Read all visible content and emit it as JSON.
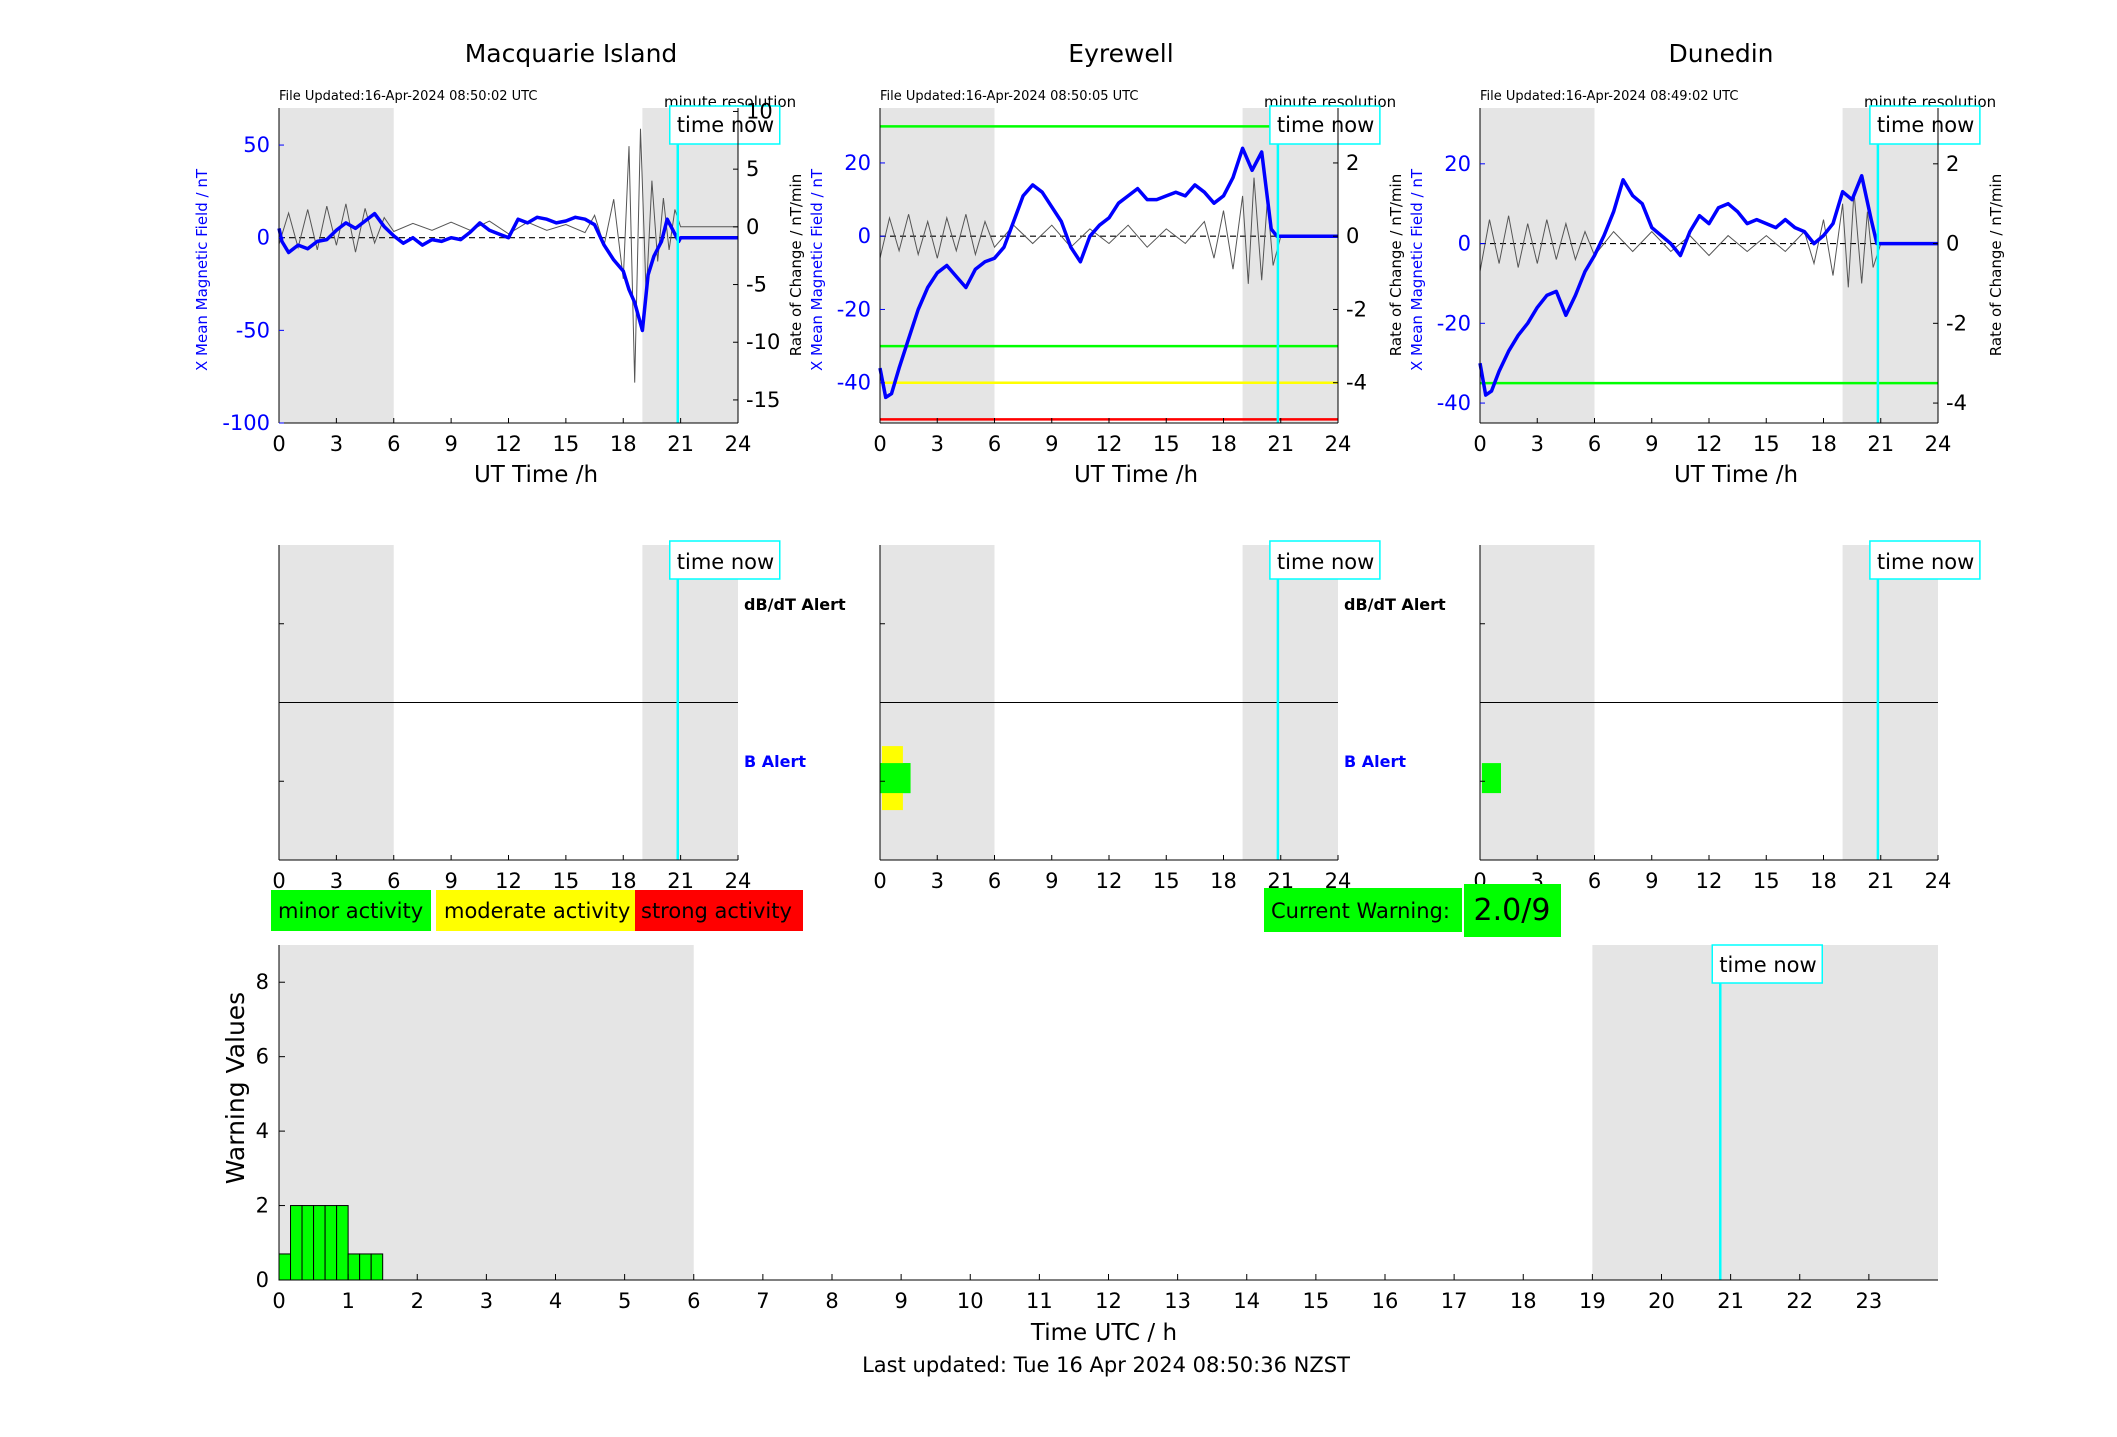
{
  "time_now_label": "time now",
  "minute_resolution_label": "minute resolution",
  "last_updated": "Last updated: Tue 16 Apr 2024 08:50:36 NZST",
  "colors": {
    "field": "#0000ff",
    "rate": "#555555",
    "shade": "#e5e5e5",
    "time_now": "#00ffff",
    "minor": "#00ff00",
    "moderate": "#ffff00",
    "strong": "#ff0000"
  },
  "legend": {
    "minor": "minor activity",
    "moderate": "moderate activity",
    "strong": "strong activity"
  },
  "current_warning": {
    "label": "Current Warning:",
    "value": "2.0/9"
  },
  "stations": [
    {
      "name": "Macquarie Island",
      "file_updated": "File Updated:16-Apr-2024 08:50:02 UTC",
      "y_left_label": "X Mean Magnetic Field / nT",
      "y_right_label": "Rate of Change / nT/min",
      "x_label": "UT Time /h",
      "alert_labels": [
        "dB/dT Alert",
        "B Alert"
      ]
    },
    {
      "name": "Eyrewell",
      "file_updated": "File Updated:16-Apr-2024 08:50:05 UTC",
      "y_left_label": "X Mean Magnetic Field / nT",
      "y_right_label": "Rate of Change / nT/min",
      "x_label": "UT Time /h",
      "alert_labels": [
        "dB/dT Alert",
        "B Alert"
      ]
    },
    {
      "name": "Dunedin",
      "file_updated": "File Updated:16-Apr-2024 08:49:02 UTC",
      "y_left_label": "X Mean Magnetic Field / nT",
      "y_right_label": "Rate of Change / nT/min",
      "x_label": "UT Time /h",
      "alert_labels": [
        "",
        ""
      ]
    }
  ],
  "chart_data": [
    {
      "type": "line",
      "title": "Macquarie Island",
      "xlabel": "UT Time /h",
      "ylabel": "X Mean Magnetic Field / nT",
      "ylabel_right": "Rate of Change / nT/min",
      "xlim": [
        0,
        24
      ],
      "ylim": [
        -100,
        70
      ],
      "ylim_right": [
        -17,
        10.3
      ],
      "x_ticks": [
        0,
        3,
        6,
        9,
        12,
        15,
        18,
        21,
        24
      ],
      "y_ticks": [
        -100,
        -50,
        0,
        50
      ],
      "y_ticks_right": [
        -15,
        -10,
        -5,
        0,
        5,
        10
      ],
      "shaded_hours": [
        [
          0,
          6
        ],
        [
          19,
          24
        ]
      ],
      "time_now": 20.85,
      "thresholds": [],
      "series": [
        {
          "x": [
            0,
            0.15,
            0.5,
            1,
            1.5,
            2,
            2.5,
            3,
            3.5,
            4,
            4.5,
            5,
            5.5,
            6,
            6.5,
            7,
            7.5,
            8,
            8.5,
            9,
            9.5,
            10,
            10.5,
            11,
            11.5,
            12,
            12.5,
            13,
            13.5,
            14,
            14.5,
            15,
            15.5,
            16,
            16.5,
            17,
            17.5,
            18,
            18.3,
            18.6,
            19,
            19.3,
            19.6,
            20,
            20.3,
            20.6,
            20.9,
            21,
            22,
            23,
            24
          ],
          "y": [
            5,
            -2,
            -8,
            -4,
            -6,
            -2,
            -1,
            4,
            8,
            5,
            9,
            13,
            6,
            1,
            -3,
            0,
            -4,
            -1,
            -2,
            0,
            -1,
            3,
            8,
            4,
            2,
            0,
            10,
            8,
            11,
            10,
            8,
            9,
            11,
            10,
            7,
            -4,
            -12,
            -18,
            -28,
            -35,
            -50,
            -20,
            -10,
            -2,
            10,
            4,
            -2,
            0,
            0,
            0,
            0
          ]
        },
        {
          "x": [
            0,
            0.5,
            1,
            1.5,
            2,
            2.5,
            3,
            3.5,
            4,
            4.5,
            5,
            5.5,
            6,
            7,
            8,
            9,
            10,
            11,
            12,
            13,
            14,
            15,
            16,
            16.5,
            17,
            17.5,
            18,
            18.3,
            18.6,
            18.9,
            19.2,
            19.5,
            19.8,
            20.1,
            20.4,
            20.7,
            21,
            22,
            23,
            24
          ],
          "y": [
            -1.5,
            1.2,
            -1.8,
            1.5,
            -2,
            1.8,
            -1.6,
            2,
            -2.2,
            1.6,
            -1.4,
            0.8,
            -0.4,
            0.3,
            -0.3,
            0.4,
            -0.3,
            0.5,
            -0.6,
            0.4,
            -0.3,
            0.2,
            -0.5,
            1,
            -1.6,
            2.4,
            -4.5,
            7,
            -13.5,
            8.5,
            -6,
            4,
            -3,
            2.5,
            -2,
            1.5,
            0,
            0,
            0,
            0
          ]
        }
      ]
    },
    {
      "type": "line",
      "title": "Eyrewell",
      "xlabel": "UT Time /h",
      "ylabel": "X Mean Magnetic Field / nT",
      "ylabel_right": "Rate of Change / nT/min",
      "xlim": [
        0,
        24
      ],
      "ylim": [
        -51,
        35
      ],
      "ylim_right": [
        -5.1,
        3.5
      ],
      "x_ticks": [
        0,
        3,
        6,
        9,
        12,
        15,
        18,
        21,
        24
      ],
      "y_ticks": [
        -40,
        -20,
        0,
        20
      ],
      "y_ticks_right": [
        -4,
        -2,
        0,
        2
      ],
      "shaded_hours": [
        [
          0,
          6
        ],
        [
          19,
          24
        ]
      ],
      "time_now": 20.85,
      "thresholds": [
        30,
        -30,
        -40,
        -50
      ],
      "series": [
        {
          "x": [
            0,
            0.3,
            0.6,
            1,
            1.5,
            2,
            2.5,
            3,
            3.5,
            4,
            4.5,
            5,
            5.5,
            6,
            6.5,
            7,
            7.5,
            8,
            8.5,
            9,
            9.5,
            10,
            10.5,
            11,
            11.5,
            12,
            12.5,
            13,
            13.5,
            14,
            14.5,
            15,
            15.5,
            16,
            16.5,
            17,
            17.5,
            18,
            18.5,
            19,
            19.5,
            20,
            20.5,
            20.8,
            21,
            22,
            23,
            24
          ],
          "y": [
            -36,
            -44,
            -43,
            -36,
            -28,
            -20,
            -14,
            -10,
            -8,
            -11,
            -14,
            -9,
            -7,
            -6,
            -3,
            4,
            11,
            14,
            12,
            8,
            4,
            -3,
            -7,
            0,
            3,
            5,
            9,
            11,
            13,
            10,
            10,
            11,
            12,
            11,
            14,
            12,
            9,
            11,
            16,
            24,
            18,
            23,
            2,
            0,
            0,
            0,
            0,
            0
          ]
        },
        {
          "x": [
            0,
            0.5,
            1,
            1.5,
            2,
            2.5,
            3,
            3.5,
            4,
            4.5,
            5,
            5.5,
            6,
            7,
            8,
            9,
            10,
            11,
            12,
            13,
            14,
            15,
            16,
            17,
            17.5,
            18,
            18.5,
            19,
            19.3,
            19.6,
            20,
            20.3,
            20.6,
            21,
            22,
            23,
            24
          ],
          "y": [
            -0.6,
            0.5,
            -0.4,
            0.6,
            -0.5,
            0.4,
            -0.6,
            0.5,
            -0.4,
            0.6,
            -0.5,
            0.4,
            -0.3,
            0.3,
            -0.2,
            0.3,
            -0.3,
            0.2,
            -0.2,
            0.3,
            -0.3,
            0.2,
            -0.2,
            0.4,
            -0.6,
            0.7,
            -0.9,
            1.1,
            -1.3,
            1.6,
            -1.2,
            1,
            -0.8,
            0,
            0,
            0,
            0
          ]
        }
      ]
    },
    {
      "type": "line",
      "title": "Dunedin",
      "xlabel": "UT Time /h",
      "ylabel": "X Mean Magnetic Field / nT",
      "ylabel_right": "Rate of Change / nT/min",
      "xlim": [
        0,
        24
      ],
      "ylim": [
        -45,
        34
      ],
      "ylim_right": [
        -4.5,
        3.4
      ],
      "x_ticks": [
        0,
        3,
        6,
        9,
        12,
        15,
        18,
        21,
        24
      ],
      "y_ticks": [
        -40,
        -20,
        0,
        20
      ],
      "y_ticks_right": [
        -4,
        -2,
        0,
        2
      ],
      "shaded_hours": [
        [
          0,
          6
        ],
        [
          19,
          24
        ]
      ],
      "time_now": 20.85,
      "thresholds": [
        -35
      ],
      "series": [
        {
          "x": [
            0,
            0.3,
            0.6,
            1,
            1.5,
            2,
            2.5,
            3,
            3.5,
            4,
            4.5,
            5,
            5.5,
            6,
            6.5,
            7,
            7.5,
            8,
            8.5,
            9,
            9.5,
            10,
            10.5,
            11,
            11.5,
            12,
            12.5,
            13,
            13.5,
            14,
            14.5,
            15,
            15.5,
            16,
            16.5,
            17,
            17.5,
            18,
            18.5,
            19,
            19.5,
            20,
            20.5,
            20.8,
            21,
            22,
            23,
            24
          ],
          "y": [
            -30,
            -38,
            -37,
            -32,
            -27,
            -23,
            -20,
            -16,
            -13,
            -12,
            -18,
            -13,
            -7,
            -3,
            2,
            8,
            16,
            12,
            10,
            4,
            2,
            0,
            -3,
            3,
            7,
            5,
            9,
            10,
            8,
            5,
            6,
            5,
            4,
            6,
            4,
            3,
            0,
            2,
            5,
            13,
            11,
            17,
            6,
            0,
            0,
            0,
            0,
            0
          ]
        },
        {
          "x": [
            0,
            0.5,
            1,
            1.5,
            2,
            2.5,
            3,
            3.5,
            4,
            4.5,
            5,
            5.5,
            6,
            7,
            8,
            9,
            10,
            11,
            12,
            13,
            14,
            15,
            16,
            17,
            17.5,
            18,
            18.5,
            19,
            19.3,
            19.6,
            20,
            20.3,
            20.6,
            21,
            22,
            23,
            24
          ],
          "y": [
            -0.7,
            0.6,
            -0.5,
            0.7,
            -0.6,
            0.5,
            -0.5,
            0.6,
            -0.4,
            0.5,
            -0.4,
            0.3,
            -0.3,
            0.3,
            -0.2,
            0.3,
            -0.2,
            0.2,
            -0.3,
            0.2,
            -0.2,
            0.2,
            -0.2,
            0.3,
            -0.5,
            0.6,
            -0.8,
            1,
            -1.1,
            1.3,
            -1,
            0.8,
            -0.6,
            0,
            0,
            0,
            0
          ]
        }
      ]
    },
    {
      "type": "bar",
      "title": "",
      "xlabel": "Time UTC / h",
      "ylabel": "Warning Values",
      "xlim": [
        0,
        24
      ],
      "ylim": [
        0,
        9
      ],
      "x_ticks": [
        0,
        1,
        2,
        3,
        4,
        5,
        6,
        7,
        8,
        9,
        10,
        11,
        12,
        13,
        14,
        15,
        16,
        17,
        18,
        19,
        20,
        21,
        22,
        23
      ],
      "y_ticks": [
        0,
        2,
        4,
        6,
        8
      ],
      "shaded_hours": [
        [
          0,
          6
        ],
        [
          19,
          24
        ]
      ],
      "time_now": 20.85,
      "bin_width_h": 0.1667,
      "x": [
        0,
        0.1667,
        0.3333,
        0.5,
        0.6667,
        0.8333,
        1,
        1.1667,
        1.3333
      ],
      "values": [
        0.7,
        2,
        2,
        2,
        2,
        2,
        0.7,
        0.7,
        0.7
      ]
    }
  ],
  "alert_blocks": [
    {
      "station": 1,
      "x0": 0.0,
      "x1": 1.6,
      "level": "minor"
    },
    {
      "station": 1,
      "x0": 0.1,
      "x1": 1.2,
      "level": "moderate"
    },
    {
      "station": 2,
      "x0": 0.1,
      "x1": 1.1,
      "level": "minor"
    }
  ]
}
